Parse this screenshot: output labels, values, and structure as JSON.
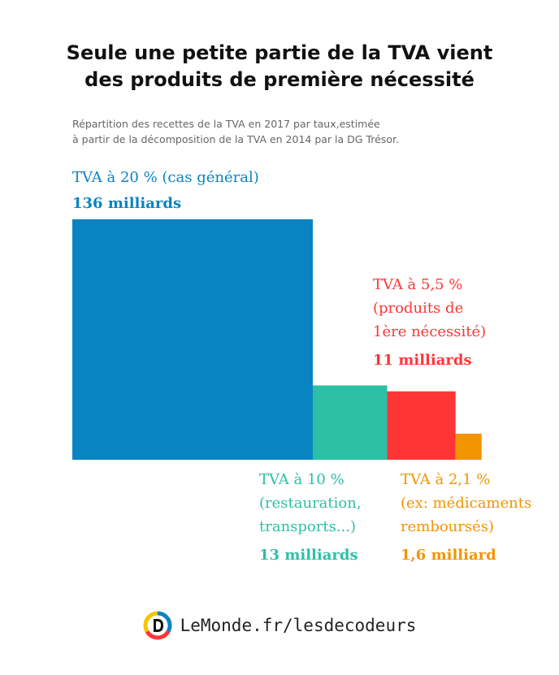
{
  "title_line1": "Seule une petite partie de la TVA vient",
  "title_line2": "des produits de première nécessité",
  "subtitle_line1": "Répartition des recettes de la TVA en 2017 par taux,estimée",
  "subtitle_line2": "à partir de la décomposition de la TVA en 2014 par la DG Trésor.",
  "footer": "LeMonde.fr/lesdecodeurs",
  "chart_data": {
    "type": "bar",
    "unit": "milliards",
    "categories": [
      "TVA à 20 %",
      "TVA à 10 %",
      "TVA à 5,5 %",
      "TVA à 2,1 %"
    ],
    "values": [
      136,
      13,
      11,
      1.6
    ],
    "colors": [
      "#0a83c2",
      "#2cbfa6",
      "#ff3535",
      "#f29400"
    ],
    "labels": [
      {
        "lines": [
          "TVA à 20 % (cas général)"
        ],
        "value_text": "136 milliards"
      },
      {
        "lines": [
          "TVA à 10 %",
          "(restauration,",
          "transports...)"
        ],
        "value_text": "13 milliards"
      },
      {
        "lines": [
          "TVA à 5,5 %",
          "(produits de",
          "1ère nécessité)"
        ],
        "value_text": "11 milliards"
      },
      {
        "lines": [
          "TVA à 2,1 %",
          "(ex: médicaments",
          "remboursés)"
        ],
        "value_text": "1,6 milliard"
      }
    ]
  }
}
